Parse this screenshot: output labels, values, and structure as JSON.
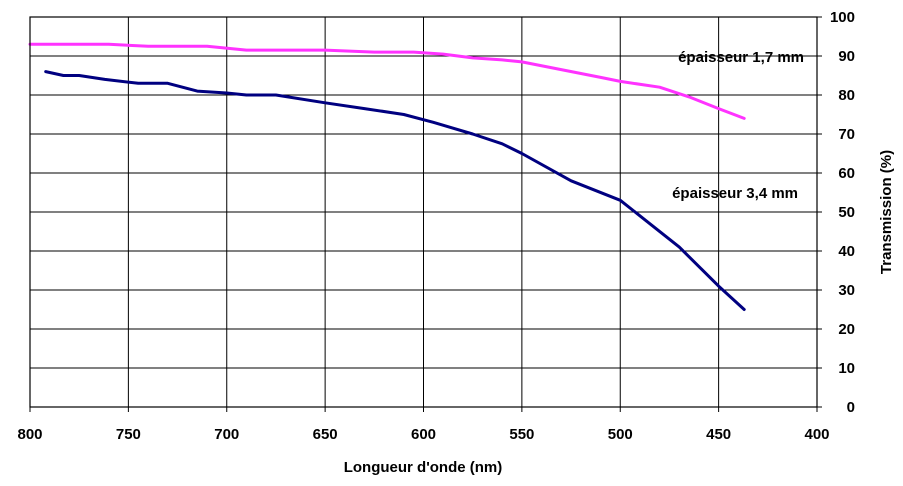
{
  "chart_data": {
    "type": "line",
    "title": "",
    "xlabel": "Longueur d'onde (nm)",
    "ylabel": "Transmission (%)",
    "xlim": [
      800,
      400
    ],
    "ylim": [
      0,
      100
    ],
    "x_ticks": [
      800,
      750,
      700,
      650,
      600,
      550,
      500,
      450,
      400
    ],
    "y_ticks": [
      0,
      10,
      20,
      30,
      40,
      50,
      60,
      70,
      80,
      90,
      100
    ],
    "y_axis_side": "right",
    "x_reversed": true,
    "grid": true,
    "series": [
      {
        "name": "épaisseur 1,7 mm",
        "color": "#ff33ff",
        "x": [
          800,
          775,
          760,
          740,
          725,
          710,
          690,
          670,
          650,
          625,
          605,
          590,
          575,
          560,
          550,
          530,
          510,
          500,
          480,
          465,
          450,
          437
        ],
        "y": [
          93,
          93,
          93,
          92.5,
          92.5,
          92.5,
          91.5,
          91.5,
          91.5,
          91,
          91,
          90.5,
          89.5,
          89,
          88.5,
          86.5,
          84.5,
          83.5,
          82,
          79.5,
          76.5,
          74
        ]
      },
      {
        "name": "épaisseur 3,4 mm",
        "color": "#000080",
        "x": [
          792,
          783,
          775,
          762,
          745,
          730,
          715,
          700,
          690,
          675,
          650,
          630,
          610,
          595,
          575,
          560,
          550,
          525,
          500,
          485,
          470,
          450,
          437
        ],
        "y": [
          86,
          85,
          85,
          84,
          83,
          83,
          81,
          80.5,
          80,
          80,
          78,
          76.5,
          75,
          73,
          70,
          67.5,
          65,
          58,
          53,
          47,
          41,
          31,
          25
        ]
      }
    ]
  }
}
